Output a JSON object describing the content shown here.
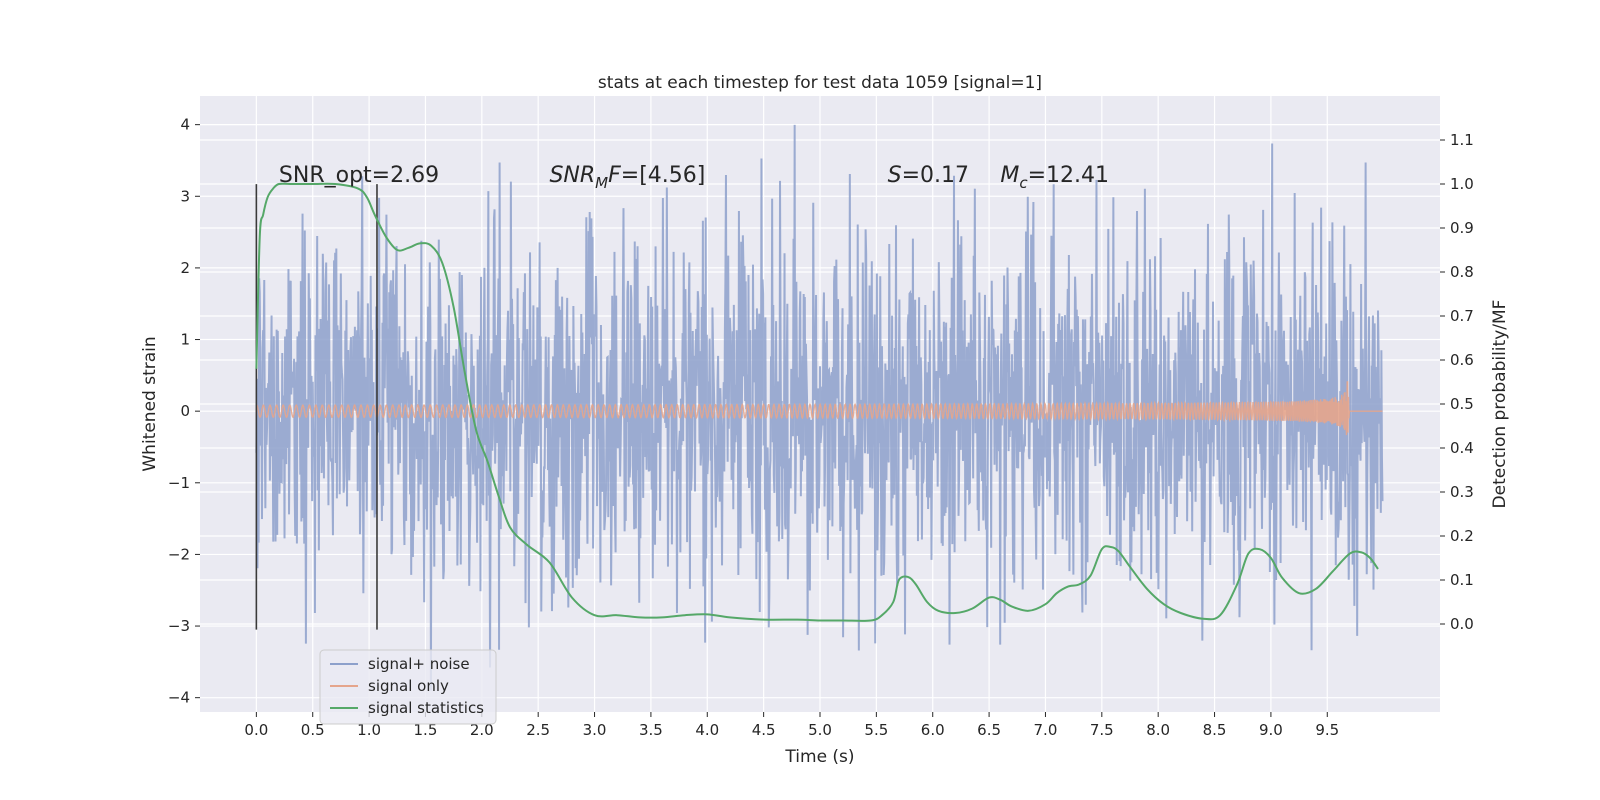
{
  "chart_data": {
    "type": "line",
    "title": "stats at each timestep for test data 1059 [signal=1]",
    "xlabel": "Time (s)",
    "ylabel": "Whitened strain",
    "ylabel_right": "Detection probability/MF",
    "xlim": [
      -0.5,
      10.5
    ],
    "ylim": [
      -4.2,
      4.4
    ],
    "ylim_right": [
      -0.2,
      1.2
    ],
    "x_ticks": [
      "0.0",
      "0.5",
      "1.0",
      "1.5",
      "2.0",
      "2.5",
      "3.0",
      "3.5",
      "4.0",
      "4.5",
      "5.0",
      "5.5",
      "6.0",
      "6.5",
      "7.0",
      "7.5",
      "8.0",
      "8.5",
      "9.0",
      "9.5"
    ],
    "y_ticks": [
      "4",
      "3",
      "2",
      "1",
      "0",
      "−1",
      "−2",
      "−3",
      "−4"
    ],
    "y_ticks_right": [
      "1.1",
      "1.0",
      "0.9",
      "0.8",
      "0.7",
      "0.6",
      "0.5",
      "0.4",
      "0.3",
      "0.2",
      "0.1",
      "0.0"
    ],
    "grid": true,
    "legend_position": "lower-left",
    "colors": {
      "noise": "#8da0cb",
      "signal": "#e5a58c",
      "stats": "#55a868",
      "vline": "#3a3a3a",
      "axes_bg": "#eaeaf2",
      "grid": "#ffffff"
    },
    "series": [
      {
        "name": "signal+ noise",
        "axis": "left",
        "x_range": [
          0.0,
          9.99
        ],
        "amplitude_typical": 1.3,
        "max": 4.05,
        "min": -3.9
      },
      {
        "name": "signal only",
        "axis": "left",
        "x_range": [
          0.0,
          9.68
        ],
        "peak_time": 9.68,
        "peak_amplitude": 0.4
      },
      {
        "name": "signal statistics",
        "axis": "right",
        "x": [
          0.0,
          0.03,
          0.06,
          0.1,
          0.15,
          0.2,
          0.3,
          0.5,
          0.7,
          0.9,
          0.98,
          1.05,
          1.15,
          1.25,
          1.35,
          1.45,
          1.55,
          1.65,
          1.75,
          1.85,
          1.95,
          2.05,
          2.15,
          2.25,
          2.4,
          2.6,
          2.8,
          3.0,
          3.2,
          3.4,
          3.6,
          3.8,
          4.0,
          4.2,
          4.5,
          4.8,
          5.0,
          5.2,
          5.45,
          5.55,
          5.65,
          5.7,
          5.78,
          5.85,
          5.95,
          6.05,
          6.2,
          6.35,
          6.5,
          6.6,
          6.7,
          6.85,
          7.0,
          7.1,
          7.2,
          7.3,
          7.4,
          7.5,
          7.58,
          7.65,
          7.75,
          7.9,
          8.05,
          8.2,
          8.4,
          8.55,
          8.7,
          8.8,
          8.9,
          9.0,
          9.1,
          9.25,
          9.4,
          9.55,
          9.7,
          9.8,
          9.88,
          9.95
        ],
        "values": [
          0.58,
          0.88,
          0.93,
          0.97,
          0.99,
          1.0,
          1.0,
          1.0,
          1.0,
          0.99,
          0.97,
          0.93,
          0.88,
          0.85,
          0.855,
          0.865,
          0.86,
          0.82,
          0.72,
          0.57,
          0.44,
          0.37,
          0.29,
          0.22,
          0.18,
          0.14,
          0.06,
          0.02,
          0.02,
          0.015,
          0.015,
          0.02,
          0.022,
          0.015,
          0.01,
          0.01,
          0.008,
          0.008,
          0.008,
          0.02,
          0.05,
          0.1,
          0.107,
          0.09,
          0.05,
          0.03,
          0.025,
          0.035,
          0.06,
          0.055,
          0.04,
          0.03,
          0.045,
          0.07,
          0.085,
          0.09,
          0.11,
          0.17,
          0.175,
          0.165,
          0.13,
          0.08,
          0.045,
          0.025,
          0.012,
          0.02,
          0.09,
          0.16,
          0.17,
          0.15,
          0.105,
          0.07,
          0.08,
          0.12,
          0.16,
          0.163,
          0.15,
          0.125
        ]
      }
    ],
    "vlines": [
      0.0,
      1.07
    ],
    "annotations": [
      {
        "parts": [
          {
            "t": "SNR_opt=2.69",
            "i": false
          }
        ],
        "x": 0.2,
        "y": 3.2
      },
      {
        "parts": [
          {
            "t": "SNR",
            "i": true
          },
          {
            "t": "M",
            "i": true,
            "sub": true
          },
          {
            "t": "F",
            "i": true
          },
          {
            "t": "=[4.56]",
            "i": false
          }
        ],
        "x": 2.6,
        "y": 3.2
      },
      {
        "parts": [
          {
            "t": "S",
            "i": true
          },
          {
            "t": "=0.17",
            "i": false
          }
        ],
        "x": 5.6,
        "y": 3.2
      },
      {
        "parts": [
          {
            "t": "M",
            "i": true
          },
          {
            "t": "c",
            "i": true,
            "sub": true
          },
          {
            "t": "=12.41",
            "i": false
          }
        ],
        "x": 6.6,
        "y": 3.2
      }
    ]
  }
}
